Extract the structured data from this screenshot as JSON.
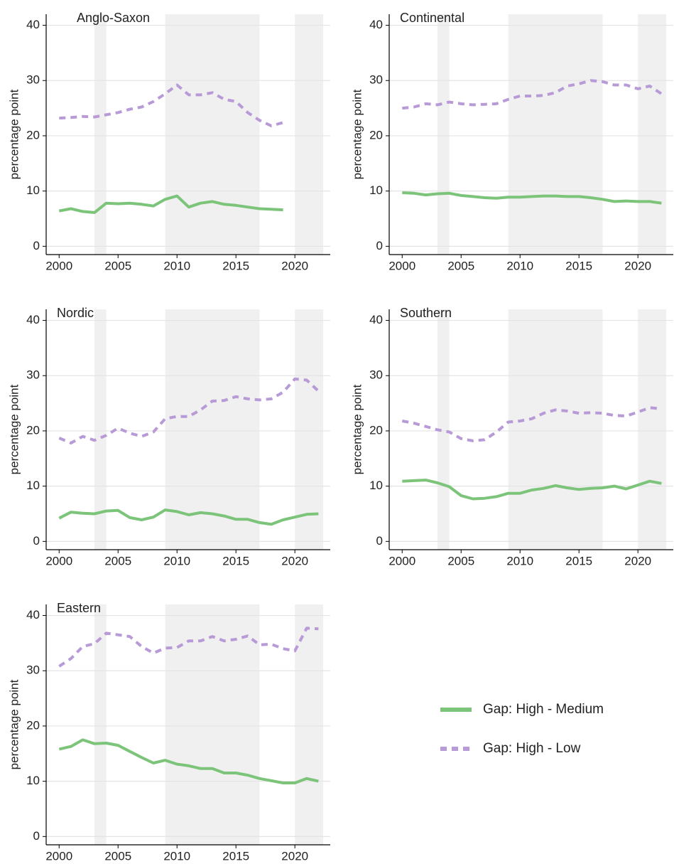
{
  "legend_position": "bottom-right",
  "chart_data": [
    {
      "type": "line",
      "title": "Anglo-Saxon",
      "ylabel": "percentage point",
      "x": [
        2000,
        2001,
        2002,
        2003,
        2004,
        2005,
        2006,
        2007,
        2008,
        2009,
        2010,
        2011,
        2012,
        2013,
        2014,
        2015,
        2016,
        2017,
        2018,
        2019,
        2020,
        2021,
        2022
      ],
      "series": [
        {
          "name": "Gap: High - Medium",
          "color": "#7cc47a",
          "style": "solid",
          "values": [
            6.4,
            6.8,
            6.3,
            6.1,
            7.8,
            7.7,
            7.8,
            7.6,
            7.3,
            8.5,
            9.1,
            7.1,
            7.8,
            8.1,
            7.6,
            7.4,
            7.1,
            6.8,
            6.7,
            6.6,
            null,
            null,
            null
          ]
        },
        {
          "name": "Gap: High - Low",
          "color": "#b79ad6",
          "style": "dashed",
          "values": [
            23.2,
            23.3,
            23.5,
            23.4,
            23.8,
            24.2,
            24.8,
            25.2,
            26.2,
            27.6,
            29.2,
            27.4,
            27.4,
            27.8,
            26.6,
            26.2,
            24.2,
            22.8,
            21.8,
            22.4,
            null,
            null,
            null
          ]
        }
      ],
      "xlim": [
        1998.9,
        2023.0
      ],
      "ylim": [
        -1.5,
        42
      ],
      "xticks": [
        2000,
        2005,
        2010,
        2015,
        2020
      ],
      "yticks": [
        0,
        10,
        20,
        30,
        40
      ],
      "grid": true,
      "shaded_periods": [
        [
          2003,
          2004
        ],
        [
          2009,
          2017
        ],
        [
          2020,
          2022.4
        ]
      ]
    },
    {
      "type": "line",
      "title": "Continental",
      "ylabel": "percentage point",
      "x": [
        2000,
        2001,
        2002,
        2003,
        2004,
        2005,
        2006,
        2007,
        2008,
        2009,
        2010,
        2011,
        2012,
        2013,
        2014,
        2015,
        2016,
        2017,
        2018,
        2019,
        2020,
        2021,
        2022
      ],
      "series": [
        {
          "name": "Gap: High - Medium",
          "color": "#7cc47a",
          "style": "solid",
          "values": [
            9.7,
            9.6,
            9.3,
            9.5,
            9.6,
            9.2,
            9.0,
            8.8,
            8.7,
            8.9,
            8.9,
            9.0,
            9.1,
            9.1,
            9.0,
            9.0,
            8.8,
            8.5,
            8.1,
            8.2,
            8.1,
            8.1,
            7.8
          ]
        },
        {
          "name": "Gap: High - Low",
          "color": "#b79ad6",
          "style": "dashed",
          "values": [
            25.0,
            25.2,
            25.8,
            25.6,
            26.1,
            25.8,
            25.6,
            25.7,
            25.8,
            26.6,
            27.2,
            27.2,
            27.3,
            27.8,
            29.0,
            29.4,
            30.0,
            29.8,
            29.2,
            29.2,
            28.5,
            29.0,
            27.6
          ]
        }
      ],
      "xlim": [
        1998.9,
        2023.0
      ],
      "ylim": [
        -1.5,
        42
      ],
      "xticks": [
        2000,
        2005,
        2010,
        2015,
        2020
      ],
      "yticks": [
        0,
        10,
        20,
        30,
        40
      ],
      "grid": true,
      "shaded_periods": [
        [
          2003,
          2004
        ],
        [
          2009,
          2017
        ],
        [
          2020,
          2022.4
        ]
      ]
    },
    {
      "type": "line",
      "title": "Nordic",
      "ylabel": "percentage point",
      "x": [
        2000,
        2001,
        2002,
        2003,
        2004,
        2005,
        2006,
        2007,
        2008,
        2009,
        2010,
        2011,
        2012,
        2013,
        2014,
        2015,
        2016,
        2017,
        2018,
        2019,
        2020,
        2021,
        2022
      ],
      "series": [
        {
          "name": "Gap: High - Medium",
          "color": "#7cc47a",
          "style": "solid",
          "values": [
            4.2,
            5.3,
            5.1,
            5.0,
            5.5,
            5.6,
            4.3,
            3.9,
            4.4,
            5.7,
            5.4,
            4.8,
            5.2,
            5.0,
            4.6,
            4.0,
            4.0,
            3.4,
            3.1,
            3.9,
            4.4,
            4.9,
            5.0
          ]
        },
        {
          "name": "Gap: High - Low",
          "color": "#b79ad6",
          "style": "dashed",
          "values": [
            18.7,
            17.8,
            19.0,
            18.3,
            19.2,
            20.5,
            19.6,
            19.0,
            19.8,
            22.2,
            22.6,
            22.6,
            23.8,
            25.4,
            25.5,
            26.2,
            25.8,
            25.6,
            25.8,
            27.0,
            29.4,
            29.2,
            27.2
          ]
        }
      ],
      "xlim": [
        1998.9,
        2023.0
      ],
      "ylim": [
        -1.5,
        42
      ],
      "xticks": [
        2000,
        2005,
        2010,
        2015,
        2020
      ],
      "yticks": [
        0,
        10,
        20,
        30,
        40
      ],
      "grid": true,
      "shaded_periods": [
        [
          2003,
          2004
        ],
        [
          2009,
          2017
        ],
        [
          2020,
          2022.4
        ]
      ]
    },
    {
      "type": "line",
      "title": "Southern",
      "ylabel": "percentage point",
      "x": [
        2000,
        2001,
        2002,
        2003,
        2004,
        2005,
        2006,
        2007,
        2008,
        2009,
        2010,
        2011,
        2012,
        2013,
        2014,
        2015,
        2016,
        2017,
        2018,
        2019,
        2020,
        2021,
        2022
      ],
      "series": [
        {
          "name": "Gap: High - Medium",
          "color": "#7cc47a",
          "style": "solid",
          "values": [
            10.9,
            11.0,
            11.1,
            10.6,
            9.9,
            8.3,
            7.7,
            7.8,
            8.1,
            8.7,
            8.7,
            9.3,
            9.6,
            10.1,
            9.7,
            9.4,
            9.6,
            9.7,
            10.0,
            9.5,
            10.2,
            10.9,
            10.5
          ]
        },
        {
          "name": "Gap: High - Low",
          "color": "#b79ad6",
          "style": "dashed",
          "values": [
            21.8,
            21.4,
            20.8,
            20.2,
            19.8,
            18.6,
            18.2,
            18.4,
            19.8,
            21.6,
            21.8,
            22.2,
            23.2,
            23.8,
            23.6,
            23.2,
            23.3,
            23.2,
            22.8,
            22.7,
            23.4,
            24.2,
            24.0
          ]
        }
      ],
      "xlim": [
        1998.9,
        2023.0
      ],
      "ylim": [
        -1.5,
        42
      ],
      "xticks": [
        2000,
        2005,
        2010,
        2015,
        2020
      ],
      "yticks": [
        0,
        10,
        20,
        30,
        40
      ],
      "grid": true,
      "shaded_periods": [
        [
          2003,
          2004
        ],
        [
          2009,
          2017
        ],
        [
          2020,
          2022.4
        ]
      ]
    },
    {
      "type": "line",
      "title": "Eastern",
      "ylabel": "percentage point",
      "x": [
        2000,
        2001,
        2002,
        2003,
        2004,
        2005,
        2006,
        2007,
        2008,
        2009,
        2010,
        2011,
        2012,
        2013,
        2014,
        2015,
        2016,
        2017,
        2018,
        2019,
        2020,
        2021,
        2022
      ],
      "series": [
        {
          "name": "Gap: High - Medium",
          "color": "#7cc47a",
          "style": "solid",
          "values": [
            15.8,
            16.3,
            17.5,
            16.8,
            16.9,
            16.5,
            15.4,
            14.3,
            13.3,
            13.8,
            13.1,
            12.8,
            12.3,
            12.3,
            11.5,
            11.5,
            11.1,
            10.5,
            10.1,
            9.7,
            9.7,
            10.5,
            10.0
          ]
        },
        {
          "name": "Gap: High - Low",
          "color": "#b79ad6",
          "style": "dashed",
          "values": [
            30.8,
            32.2,
            34.4,
            34.9,
            36.8,
            36.5,
            36.2,
            34.4,
            33.2,
            34.1,
            34.2,
            35.4,
            35.4,
            36.2,
            35.4,
            35.7,
            36.3,
            34.7,
            34.8,
            34.0,
            33.6,
            37.7,
            37.6
          ]
        }
      ],
      "xlim": [
        1998.9,
        2023.0
      ],
      "ylim": [
        -1.5,
        42
      ],
      "xticks": [
        2000,
        2005,
        2010,
        2015,
        2020
      ],
      "yticks": [
        0,
        10,
        20,
        30,
        40
      ],
      "grid": true,
      "shaded_periods": [
        [
          2003,
          2004
        ],
        [
          2009,
          2017
        ],
        [
          2020,
          2022.4
        ]
      ]
    }
  ]
}
